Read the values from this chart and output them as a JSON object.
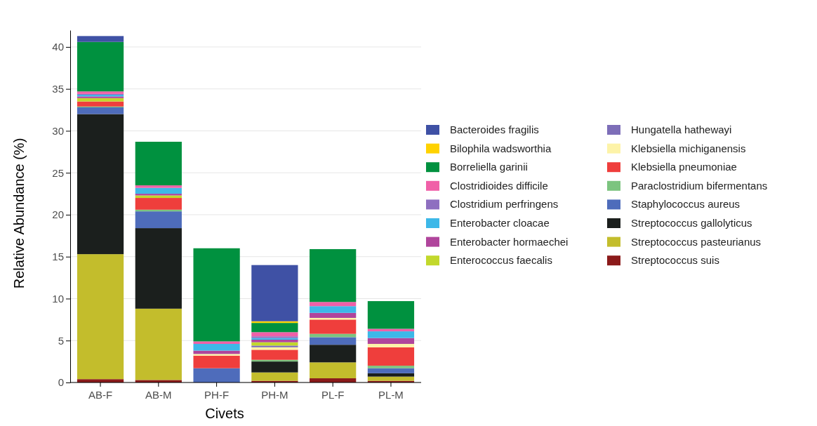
{
  "chart_data": {
    "type": "bar",
    "stacked": true,
    "xlabel": "Civets",
    "ylabel": "Relative Abundance (%)",
    "categories": [
      "AB-F",
      "AB-M",
      "PH-F",
      "PH-M",
      "PL-F",
      "PL-M"
    ],
    "ylim": [
      0,
      42
    ],
    "yticks": [
      0,
      5,
      10,
      15,
      20,
      25,
      30,
      35,
      40
    ],
    "grid": "y",
    "legend": "right",
    "series": [
      {
        "name": "Streptococcus suis",
        "color": "#8b1a1a",
        "values": [
          0.4,
          0.3,
          0,
          0.2,
          0.5,
          0.2
        ]
      },
      {
        "name": "Streptococcus pasteurianus",
        "color": "#c3bd2c",
        "values": [
          14.9,
          8.5,
          0,
          1.0,
          1.9,
          0.5
        ]
      },
      {
        "name": "Streptococcus gallolyticus",
        "color": "#1b1f1d",
        "values": [
          16.7,
          9.6,
          0,
          1.3,
          2.1,
          0.4
        ]
      },
      {
        "name": "Staphylococcus aureus",
        "color": "#4e6cbb",
        "values": [
          0.8,
          2.0,
          1.7,
          0,
          0.9,
          0.6
        ]
      },
      {
        "name": "Paraclostridium bifermentans",
        "color": "#7cc47f",
        "values": [
          0.1,
          0.2,
          0,
          0.2,
          0.4,
          0.3
        ]
      },
      {
        "name": "Klebsiella pneumoniae",
        "color": "#ef3e3c",
        "values": [
          0.6,
          1.4,
          1.5,
          1.2,
          1.7,
          2.2
        ]
      },
      {
        "name": "Klebsiella michiganensis",
        "color": "#fdf3a8",
        "values": [
          0,
          0,
          0.2,
          0.3,
          0.2,
          0.4
        ]
      },
      {
        "name": "Hungatella hathewayi",
        "color": "#7d6eb8",
        "values": [
          0,
          0,
          0,
          0.2,
          0,
          0
        ]
      },
      {
        "name": "Enterococcus faecalis",
        "color": "#c2d82c",
        "values": [
          0.4,
          0.3,
          0,
          0.4,
          0,
          0
        ]
      },
      {
        "name": "Enterobacter hormaechei",
        "color": "#b0459c",
        "values": [
          0.2,
          0.2,
          0.4,
          0.3,
          0.6,
          0.7
        ]
      },
      {
        "name": "Enterobacter cloacae",
        "color": "#3db8e8",
        "values": [
          0.2,
          0.7,
          0.8,
          0.2,
          0.8,
          0.8
        ]
      },
      {
        "name": "Clostridium perfringens",
        "color": "#8e6fc0",
        "values": [
          0.1,
          0,
          0,
          0.2,
          0,
          0
        ]
      },
      {
        "name": "Clostridioides difficile",
        "color": "#f060a8",
        "values": [
          0.3,
          0.3,
          0.3,
          0.5,
          0.5,
          0.3
        ]
      },
      {
        "name": "Borreliella garinii",
        "color": "#00913f",
        "values": [
          5.9,
          5.2,
          11.1,
          1.1,
          6.3,
          3.3
        ]
      },
      {
        "name": "Bilophila wadsworthia",
        "color": "#ffd200",
        "values": [
          0,
          0,
          0,
          0.2,
          0,
          0
        ]
      },
      {
        "name": "Bacteroides fragilis",
        "color": "#3f51a5",
        "values": [
          0.7,
          0,
          0,
          6.7,
          0,
          0
        ]
      }
    ]
  }
}
